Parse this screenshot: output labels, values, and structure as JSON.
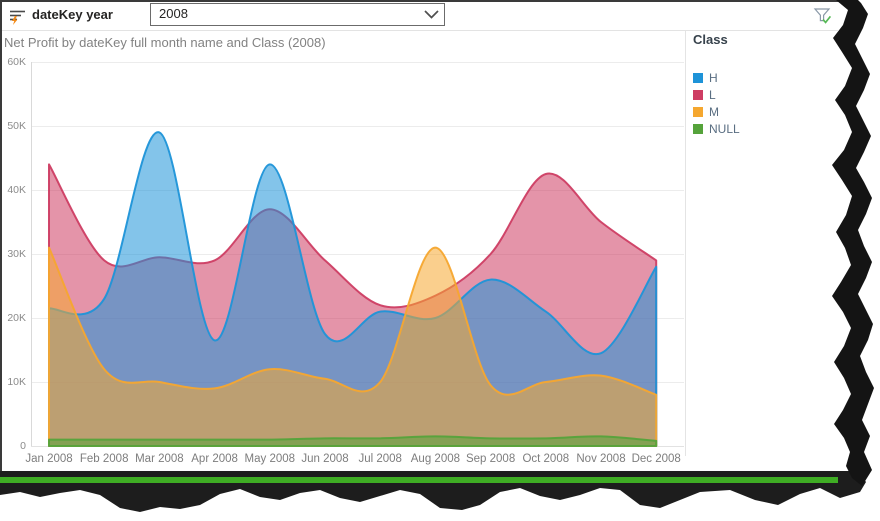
{
  "slicer": {
    "label": "dateKey year",
    "dropdown_value": "2008",
    "icon": "slicer-lightning-icon"
  },
  "filter_indicator_icon": "funnel-with-green-check",
  "chart_title": "Net Profit by dateKey full month name and Class (2008)",
  "legend": {
    "title": "Class",
    "items": [
      {
        "label": "H",
        "color": "#1E93D8"
      },
      {
        "label": "L",
        "color": "#CE3D63"
      },
      {
        "label": "M",
        "color": "#F5A72F"
      },
      {
        "label": "NULL",
        "color": "#55A33B"
      }
    ]
  },
  "chart_data": {
    "type": "area",
    "subtype": "overlapping smoothed areas (not stacked), 55% fill opacity",
    "title": "Net Profit by dateKey full month name and Class (2008)",
    "xlabel": "dateKey full month name",
    "ylabel": "Net Profit",
    "x": [
      "Jan 2008",
      "Feb 2008",
      "Mar 2008",
      "Apr 2008",
      "May 2008",
      "Jun 2008",
      "Jul 2008",
      "Aug 2008",
      "Sep 2008",
      "Oct 2008",
      "Nov 2008",
      "Dec 2008"
    ],
    "series": [
      {
        "name": "H",
        "color": "#1E93D8",
        "values": [
          21500,
          23000,
          49000,
          16500,
          44000,
          17500,
          21000,
          20000,
          26000,
          21000,
          14500,
          28000
        ]
      },
      {
        "name": "L",
        "color": "#CE3D63",
        "values": [
          44000,
          29000,
          29500,
          29000,
          37000,
          29000,
          22000,
          23500,
          30000,
          42500,
          35000,
          29000
        ]
      },
      {
        "name": "M",
        "color": "#F5A72F",
        "values": [
          31000,
          12000,
          10000,
          9000,
          12000,
          10500,
          10000,
          31000,
          9500,
          10000,
          11000,
          8000
        ]
      },
      {
        "name": "NULL",
        "color": "#55A33B",
        "values": [
          1000,
          1000,
          1000,
          1000,
          1000,
          1200,
          1200,
          1500,
          1200,
          1200,
          1500,
          800
        ]
      }
    ],
    "draw_order": [
      "L",
      "H",
      "M",
      "NULL"
    ],
    "ylim": [
      0,
      60000
    ],
    "y_ticks": [
      "0",
      "10K",
      "20K",
      "30K",
      "40K",
      "50K",
      "60K"
    ],
    "grid": true,
    "legend_position": "right"
  }
}
